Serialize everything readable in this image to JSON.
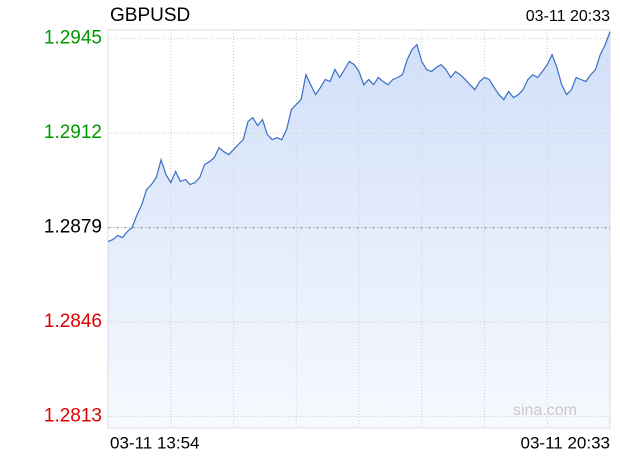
{
  "chart_data": {
    "type": "area",
    "title": "GBPUSD",
    "timestamp": "03-11 20:33",
    "watermark": "sina.com",
    "x_labels": [
      "03-11 13:54",
      "03-11 20:33"
    ],
    "color": "#3a6fc4",
    "fill_color": "#c8d9f7",
    "up_color": "#009900",
    "down_color": "#dd0000",
    "flat_color": "#000000",
    "baseline": 1.2879,
    "ylim": [
      1.2809,
      1.2948
    ],
    "yticks": [
      1.2813,
      1.2846,
      1.2879,
      1.2912,
      1.2945
    ],
    "grid": true,
    "values": [
      1.28741,
      1.28748,
      1.28762,
      1.28755,
      1.28776,
      1.2879,
      1.28835,
      1.2887,
      1.28923,
      1.2894,
      1.28965,
      1.29027,
      1.28975,
      1.28947,
      1.28986,
      1.28951,
      1.28958,
      1.2894,
      1.28947,
      1.28965,
      1.2901,
      1.2902,
      1.29034,
      1.29069,
      1.29055,
      1.29045,
      1.29062,
      1.2908,
      1.29097,
      1.2916,
      1.29174,
      1.29146,
      1.29167,
      1.29115,
      1.29097,
      1.29104,
      1.29097,
      1.29132,
      1.29202,
      1.2922,
      1.29237,
      1.29324,
      1.29289,
      1.29254,
      1.29279,
      1.29307,
      1.293,
      1.29342,
      1.29314,
      1.29342,
      1.2937,
      1.29359,
      1.29335,
      1.29289,
      1.29307,
      1.29289,
      1.29314,
      1.293,
      1.29289,
      1.29307,
      1.29314,
      1.29324,
      1.29377,
      1.29412,
      1.29429,
      1.2937,
      1.29342,
      1.29335,
      1.29349,
      1.29359,
      1.29342,
      1.29314,
      1.29335,
      1.29324,
      1.29307,
      1.29289,
      1.29272,
      1.293,
      1.29314,
      1.29307,
      1.29279,
      1.29254,
      1.29237,
      1.29265,
      1.29244,
      1.29254,
      1.29272,
      1.29307,
      1.29324,
      1.29314,
      1.29335,
      1.29359,
      1.29394,
      1.29349,
      1.29289,
      1.29254,
      1.29272,
      1.29314,
      1.29307,
      1.293,
      1.29324,
      1.29342,
      1.29394,
      1.29429,
      1.29474
    ]
  }
}
